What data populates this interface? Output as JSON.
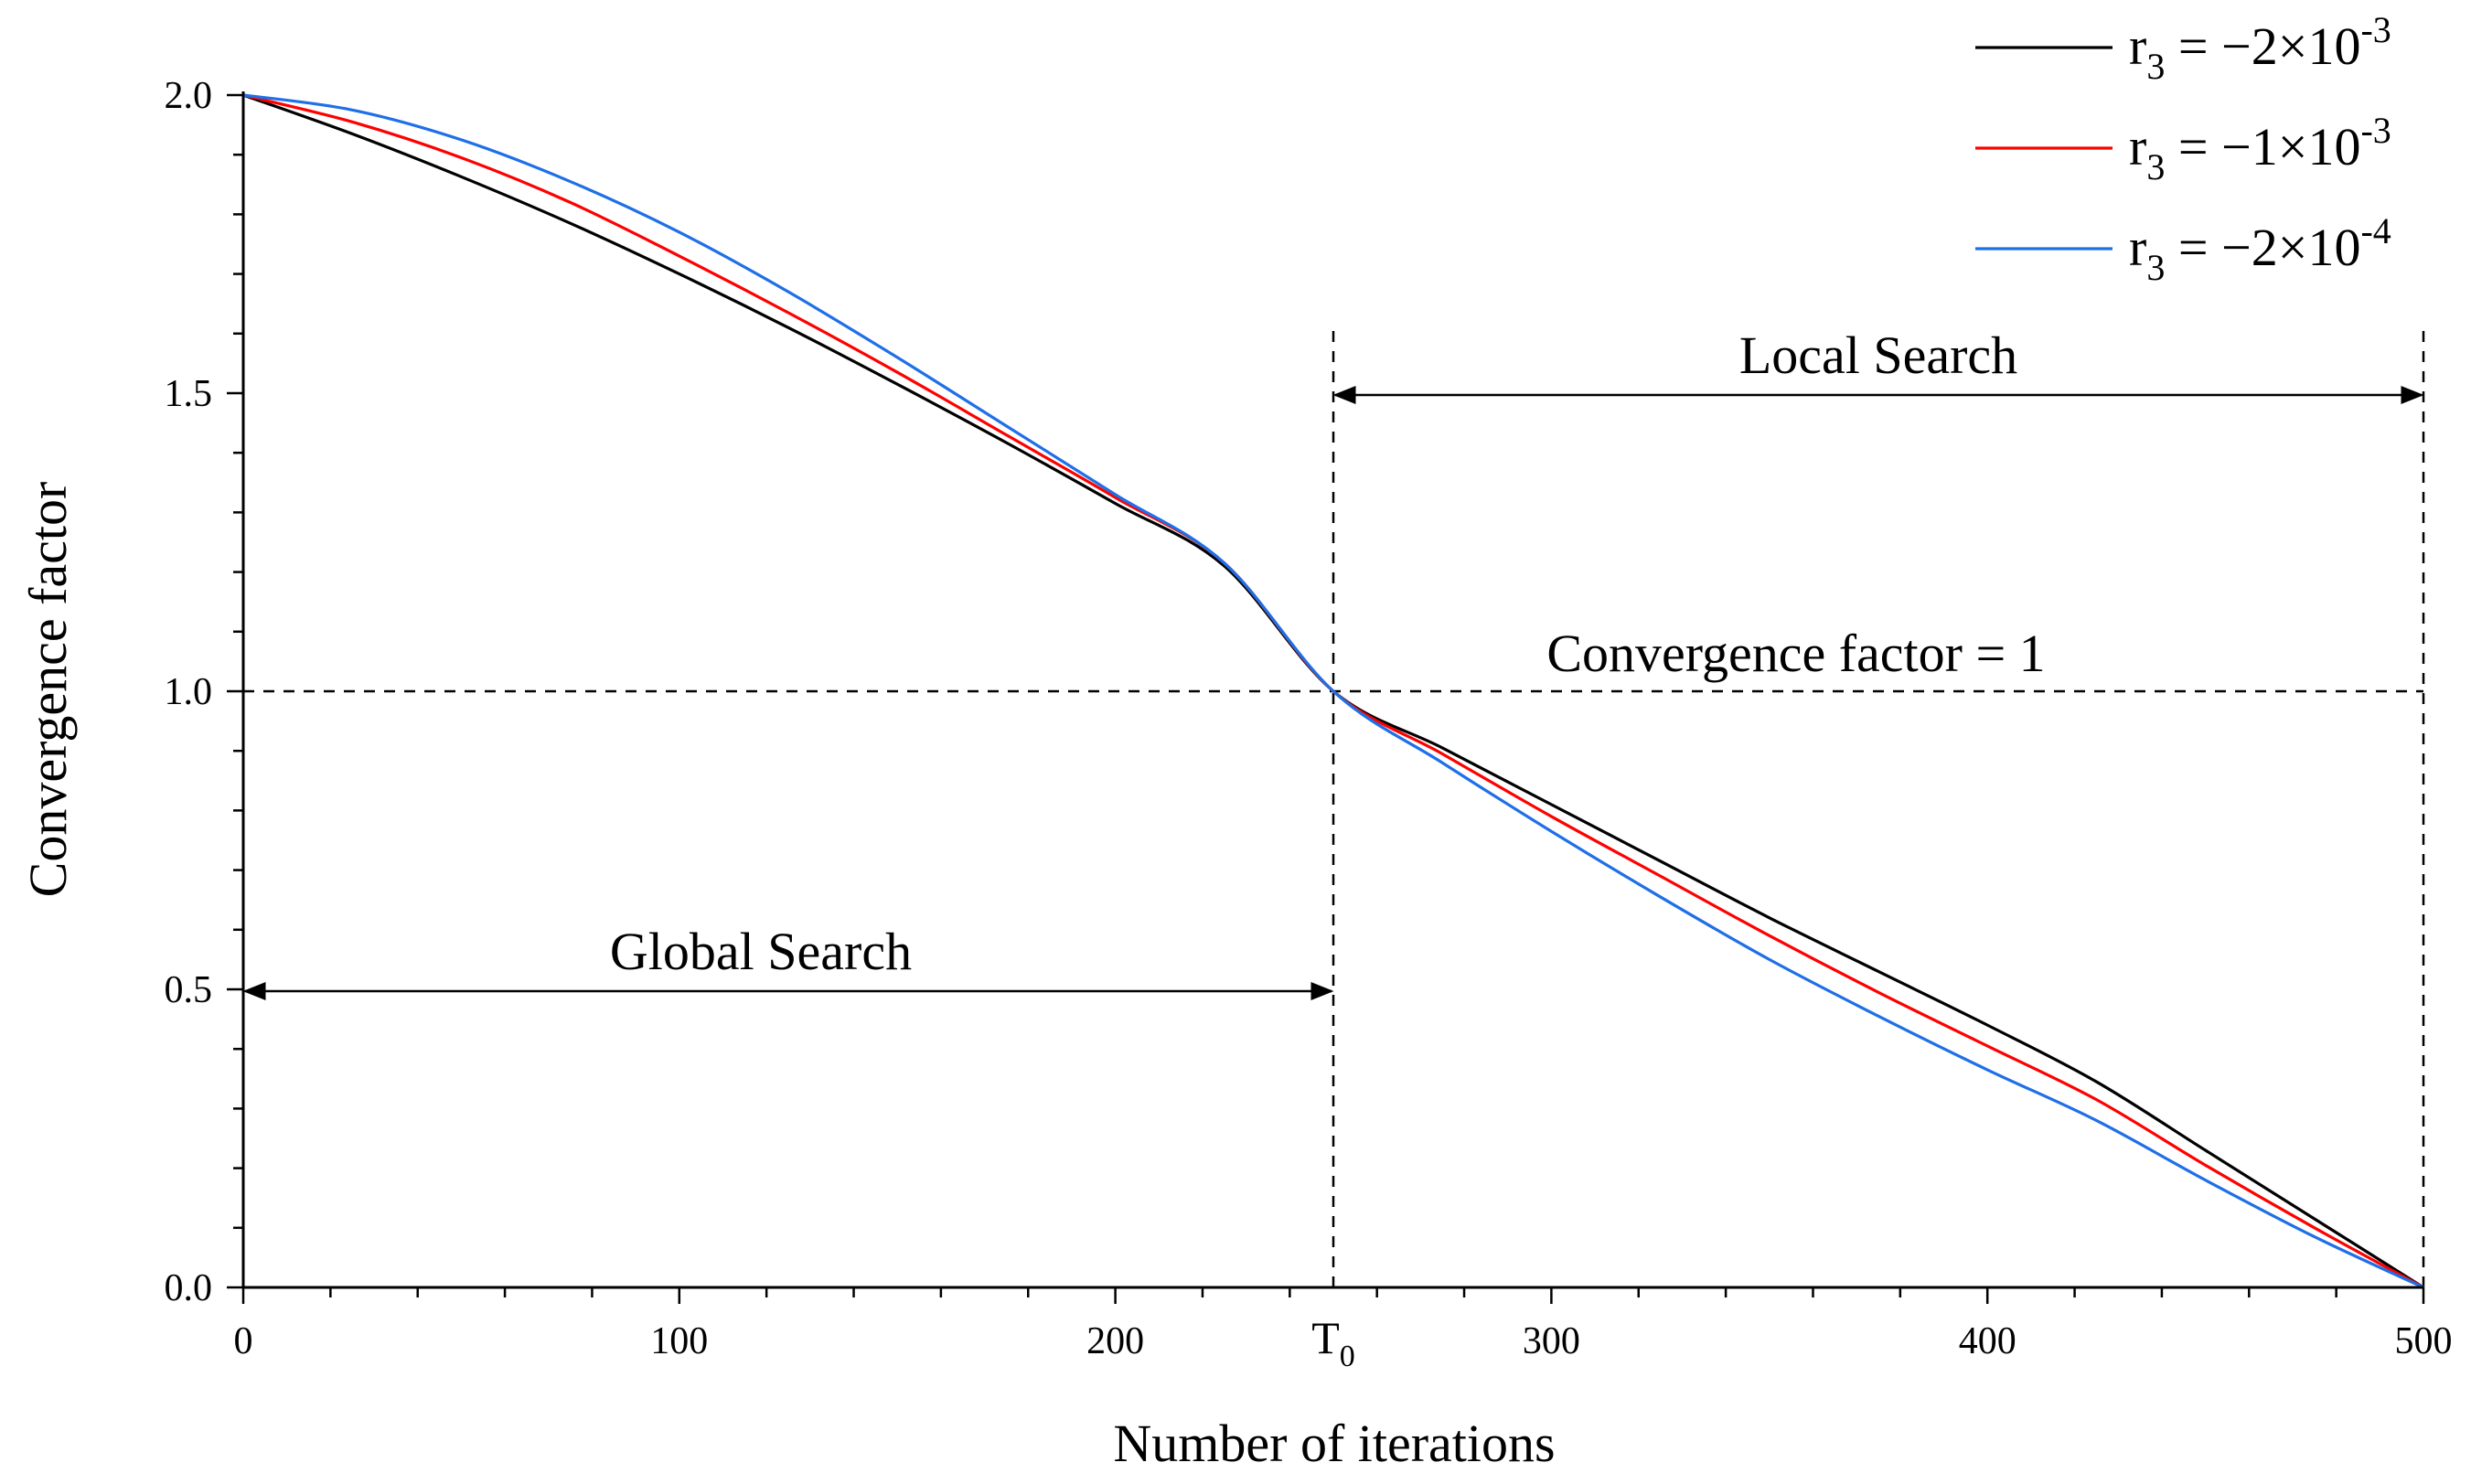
{
  "chart_data": {
    "type": "line",
    "title": "",
    "xlabel": "Number of iterations",
    "ylabel": "Convergence factor",
    "xlim": [
      0,
      500
    ],
    "ylim": [
      0,
      2
    ],
    "grid": false,
    "legend_position": "top-right",
    "x_ticks": [
      {
        "value": 0,
        "label": "0"
      },
      {
        "value": 100,
        "label": "100"
      },
      {
        "value": 200,
        "label": "200"
      },
      {
        "value": 250,
        "label": "T",
        "sub": "0"
      },
      {
        "value": 300,
        "label": "300"
      },
      {
        "value": 400,
        "label": "400"
      },
      {
        "value": 500,
        "label": "500"
      }
    ],
    "y_ticks": [
      {
        "value": 0,
        "label": "0.0"
      },
      {
        "value": 0.5,
        "label": "0.5"
      },
      {
        "value": 1,
        "label": "1.0"
      },
      {
        "value": 1.5,
        "label": "1.5"
      },
      {
        "value": 2,
        "label": "2.0"
      }
    ],
    "x": [
      0,
      25,
      50,
      75,
      100,
      125,
      150,
      175,
      200,
      225,
      250,
      275,
      300,
      325,
      350,
      375,
      400,
      425,
      450,
      475,
      500
    ],
    "series": [
      {
        "name": "r3 = −2×10−3",
        "legend": {
          "base": "r",
          "sub": "3",
          "mid": " = −2×10",
          "sup": "-3"
        },
        "color": "#000000",
        "values": [
          2.0,
          1.935,
          1.863,
          1.785,
          1.7,
          1.61,
          1.515,
          1.417,
          1.315,
          1.21,
          1.0,
          0.905,
          0.81,
          0.715,
          0.62,
          0.53,
          0.44,
          0.345,
          0.23,
          0.115,
          0.0
        ]
      },
      {
        "name": "r3 = −1×10−3",
        "legend": {
          "base": "r",
          "sub": "3",
          "mid": " = −1×10",
          "sup": "-3"
        },
        "color": "#ff0000",
        "values": [
          2.0,
          1.955,
          1.895,
          1.82,
          1.73,
          1.635,
          1.535,
          1.43,
          1.325,
          1.215,
          1.0,
          0.895,
          0.79,
          0.69,
          0.59,
          0.495,
          0.405,
          0.315,
          0.205,
          0.1,
          0.0
        ]
      },
      {
        "name": "r3 = −2×10−4",
        "legend": {
          "base": "r",
          "sub": "3",
          "mid": " = −2×10",
          "sup": "-4"
        },
        "color": "#1f6fe8",
        "values": [
          2.0,
          1.975,
          1.925,
          1.855,
          1.77,
          1.67,
          1.56,
          1.445,
          1.33,
          1.215,
          1.0,
          0.88,
          0.765,
          0.655,
          0.55,
          0.455,
          0.365,
          0.28,
          0.18,
          0.085,
          0.0
        ]
      }
    ],
    "reference_lines": {
      "horizontal": {
        "y": 1
      },
      "vertical": [
        250,
        500
      ]
    },
    "annotations": {
      "local_search": {
        "text": "Local Search",
        "x_from": 250,
        "x_to": 500,
        "y": 1.5
      },
      "global_search": {
        "text": "Global Search",
        "x_from": 0,
        "x_to": 250,
        "y": 0.5
      },
      "convergence_line": {
        "text": "Convergence factor = 1",
        "x": 375,
        "y": 1
      }
    }
  }
}
